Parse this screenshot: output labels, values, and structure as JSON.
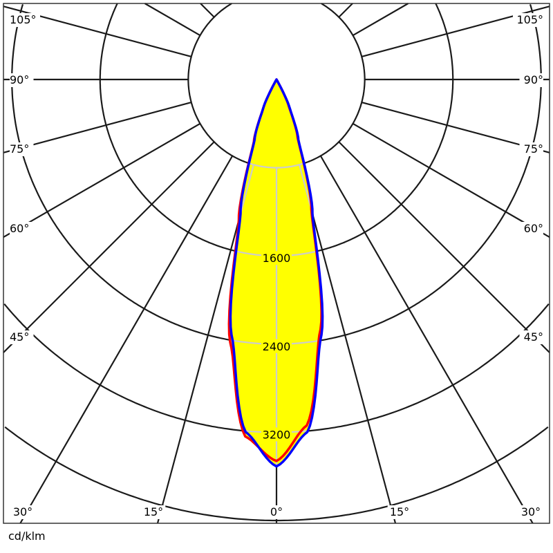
{
  "chart_data": {
    "type": "polar",
    "unit_label": "cd/klm",
    "radial_rings": [
      800,
      1600,
      2400,
      3200,
      4000
    ],
    "radial_tick_labels": [
      "1600",
      "2400",
      "3200"
    ],
    "angle_tick_labels": {
      "bottom": [
        "30°",
        "15°",
        "0°",
        "15°",
        "30°"
      ],
      "left": [
        "105°",
        "90°",
        "75°",
        "60°",
        "45°"
      ],
      "right": [
        "105°",
        "90°",
        "75°",
        "60°",
        "45°"
      ]
    },
    "angle_step_deg": 15,
    "fill_color": "#ffff00",
    "grid_color": "#1a1a1a",
    "inner_grid_color": "#cccccc",
    "series": [
      {
        "color": "#ff0000",
        "angles_deg": [
          -30,
          -25,
          -20,
          -15,
          -10,
          -5,
          0,
          5,
          10,
          15,
          20,
          25,
          30
        ],
        "values": [
          0,
          280,
          600,
          1320,
          2420,
          3250,
          3460,
          3150,
          2300,
          1220,
          560,
          260,
          0
        ]
      },
      {
        "color": "#0000ff",
        "angles_deg": [
          -30,
          -25,
          -20,
          -15,
          -10,
          -5,
          0,
          5,
          10,
          15,
          20,
          25,
          30
        ],
        "values": [
          0,
          280,
          580,
          1260,
          2350,
          3210,
          3510,
          3210,
          2350,
          1260,
          580,
          280,
          0
        ]
      }
    ]
  }
}
